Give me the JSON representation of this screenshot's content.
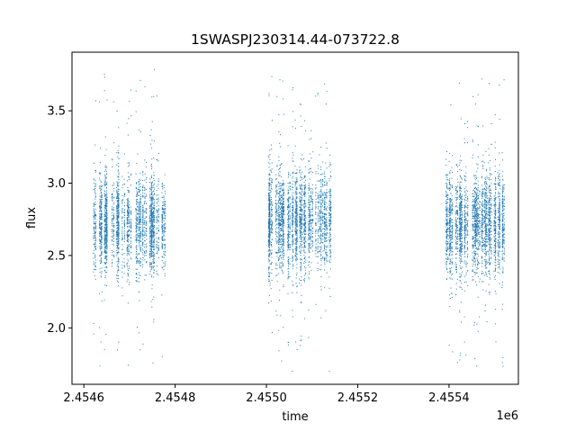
{
  "chart_data": {
    "type": "scatter",
    "title": "1SWASPJ230314.44-073722.8",
    "xlabel": "time",
    "ylabel": "flux",
    "x_offset_label": "1e6",
    "xlim": [
      2454574,
      2455552
    ],
    "ylim": [
      1.61,
      3.905
    ],
    "x_ticks": [
      {
        "value": 2454600,
        "label": "2.4546"
      },
      {
        "value": 2454800,
        "label": "2.4548"
      },
      {
        "value": 2455000,
        "label": "2.4550"
      },
      {
        "value": 2455200,
        "label": "2.4552"
      },
      {
        "value": 2455400,
        "label": "2.4554"
      }
    ],
    "y_ticks": [
      {
        "value": 2.0,
        "label": "2.0"
      },
      {
        "value": 2.5,
        "label": "2.5"
      },
      {
        "value": 3.0,
        "label": "3.0"
      },
      {
        "value": 3.5,
        "label": "3.5"
      }
    ],
    "grid": false,
    "marker_color": "#1f77b4",
    "seasons": [
      {
        "x_start": 2454620,
        "x_end": 2454780,
        "median_flux": 2.72,
        "spread": 0.17,
        "min_flux": 1.72,
        "max_flux": 3.8
      },
      {
        "x_start": 2454990,
        "x_end": 2455140,
        "median_flux": 2.75,
        "spread": 0.17,
        "min_flux": 1.7,
        "max_flux": 3.78
      },
      {
        "x_start": 2455390,
        "x_end": 2455520,
        "median_flux": 2.73,
        "spread": 0.17,
        "min_flux": 1.72,
        "max_flux": 3.79
      }
    ]
  }
}
